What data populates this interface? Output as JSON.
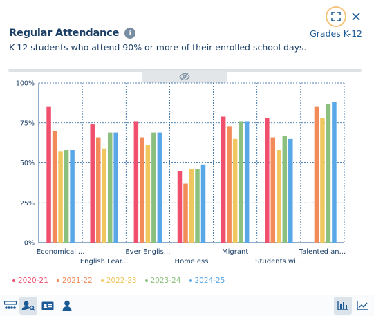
{
  "header": {
    "title": "Regular Attendance",
    "info_glyph": "i",
    "grade_filter": "Grades K-12",
    "subtitle": "K-12 students who attend 90% or more of their enrolled school days."
  },
  "icons": {
    "expand": "expand-icon",
    "close": "close-icon",
    "collapse": "eye-slash-icon"
  },
  "colors": {
    "2020-21": "#f0506e",
    "2021-22": "#f38a5a",
    "2022-23": "#f0c75e",
    "2023-24": "#8cc07e",
    "2024-25": "#5aa7e8",
    "grid": "#1c5a96",
    "accent_ring": "#f5c27a"
  },
  "chart_data": {
    "type": "bar",
    "categories": [
      "Economicall...",
      "English Lear...",
      "Ever Englis...",
      "Homeless",
      "Migrant",
      "Students wi...",
      "Talented an..."
    ],
    "series": [
      {
        "name": "2020-21",
        "values": [
          85,
          74,
          76,
          45,
          79,
          78,
          null
        ]
      },
      {
        "name": "2021-22",
        "values": [
          70,
          66,
          66,
          37,
          73,
          66,
          85
        ]
      },
      {
        "name": "2022-23",
        "values": [
          57,
          59,
          61,
          46,
          65,
          58,
          78
        ]
      },
      {
        "name": "2023-24",
        "values": [
          58,
          69,
          69,
          46,
          76,
          67,
          87
        ]
      },
      {
        "name": "2024-25",
        "values": [
          58,
          69,
          69,
          49,
          76,
          65,
          88
        ]
      }
    ],
    "yticks": [
      "0%",
      "25%",
      "50%",
      "75%",
      "100%"
    ],
    "ylim": [
      0,
      100
    ],
    "grid": true,
    "legend_position": "bottom"
  },
  "legend": [
    {
      "label": "2020-21",
      "color": "#f0506e"
    },
    {
      "label": "2021-22",
      "color": "#f38a5a"
    },
    {
      "label": "2022-23",
      "color": "#f0c75e"
    },
    {
      "label": "2023-24",
      "color": "#8cc07e"
    },
    {
      "label": "2024-25",
      "color": "#5aa7e8"
    }
  ],
  "toolbar": {
    "left": [
      "group-view-icon",
      "search-user-icon",
      "id-card-icon",
      "person-icon"
    ],
    "right": [
      "bar-chart-icon",
      "line-chart-icon"
    ]
  }
}
